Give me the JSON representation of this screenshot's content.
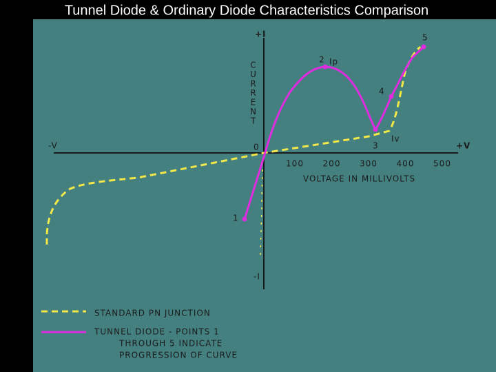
{
  "title": "Tunnel Diode & Ordinary Diode Characteristics Comparison",
  "axes": {
    "plus_i": "+I",
    "minus_i": "-I",
    "plus_v": "+V",
    "minus_v": "-V",
    "origin": "0",
    "current_letters": [
      "C",
      "U",
      "R",
      "R",
      "E",
      "N",
      "T"
    ],
    "voltage_ticks": [
      "100",
      "200",
      "300",
      "400",
      "500"
    ],
    "voltage_label": "VOLTAGE IN MILLIVOLTS"
  },
  "points": [
    {
      "label": "1"
    },
    {
      "label": "2",
      "note": "Ip"
    },
    {
      "label": "3",
      "note": "Iv"
    },
    {
      "label": "4"
    },
    {
      "label": "5"
    }
  ],
  "legend": {
    "standard": "STANDARD PN JUNCTION",
    "tunnel": [
      "TUNNEL DIODE - POINTS 1",
      "THROUGH 5 INDICATE",
      "PROGRESSION OF CURVE"
    ]
  }
}
